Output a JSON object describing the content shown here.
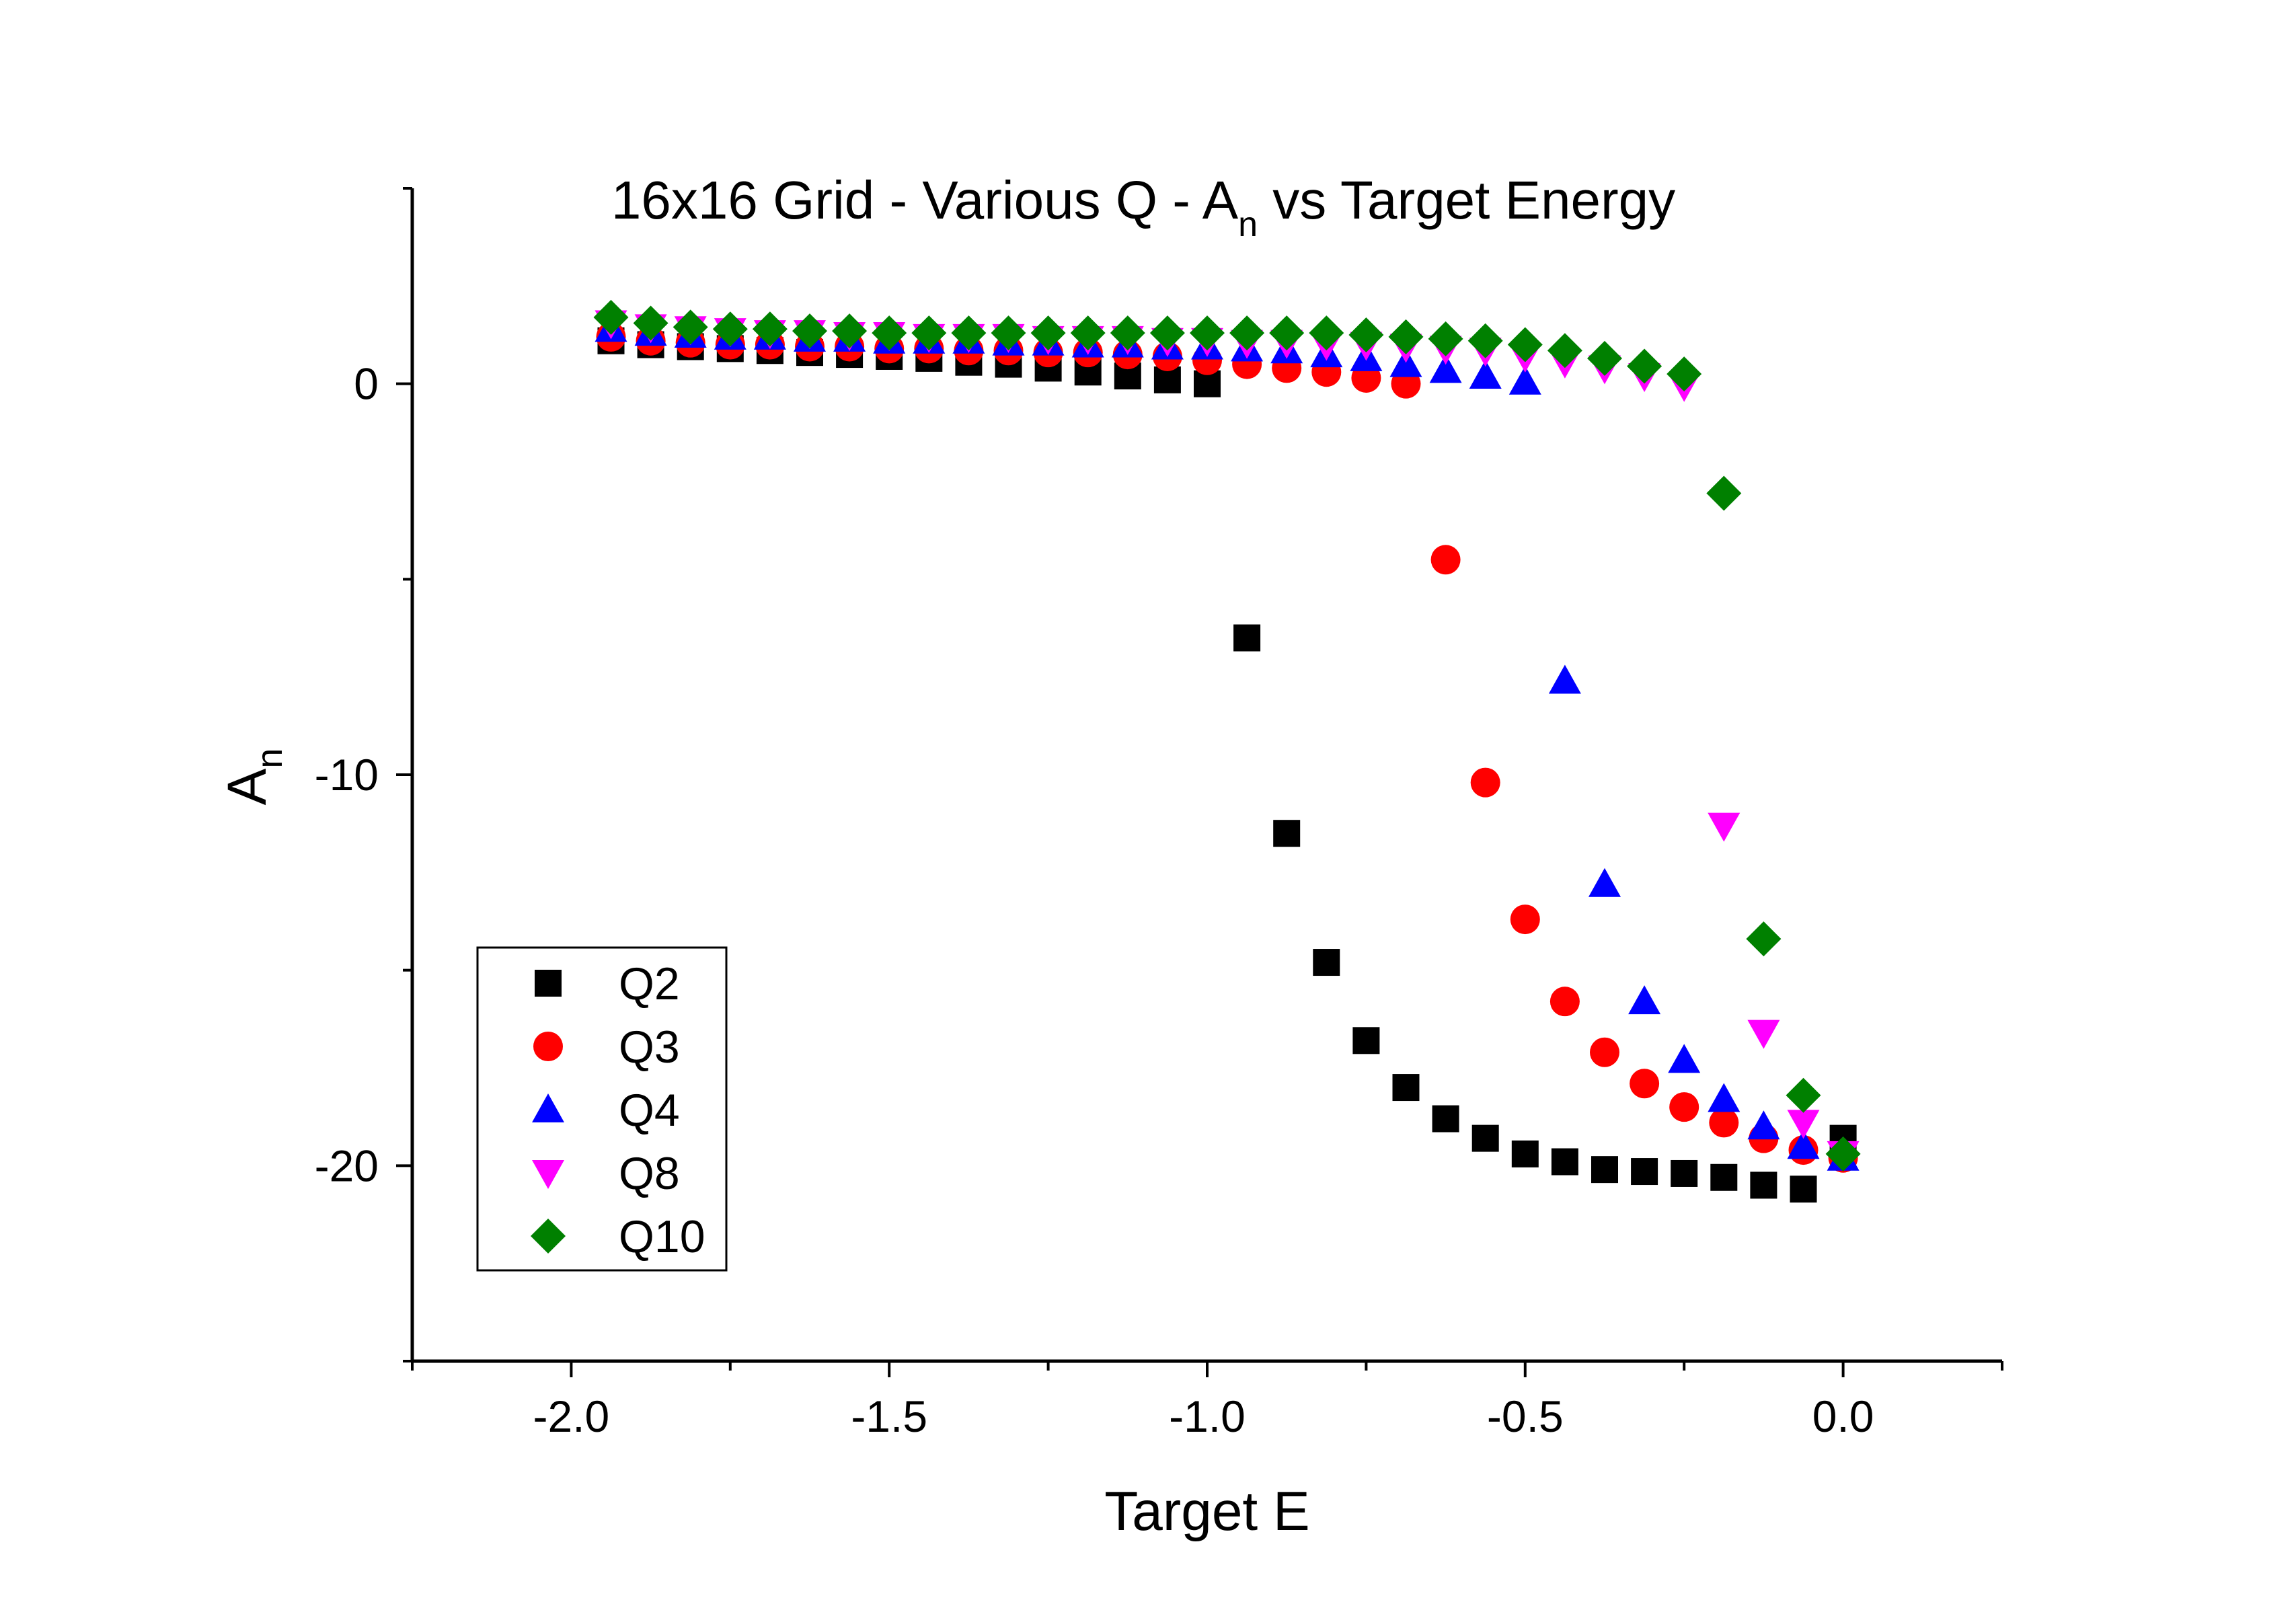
{
  "chart_data": {
    "type": "scatter",
    "title": "16x16 Grid - Various Q - A",
    "title_sub": "n",
    "title_suffix": " vs Target Energy",
    "xlabel": "Target E",
    "ylabel": "A",
    "ylabel_sub": "n",
    "xlim": [
      -2.25,
      0.25
    ],
    "ylim": [
      -25,
      5
    ],
    "x_ticks": [
      -2.0,
      -1.5,
      -1.0,
      -0.5,
      0.0
    ],
    "x_tick_labels": [
      "-2.0",
      "-1.5",
      "-1.0",
      "-0.5",
      "0.0"
    ],
    "y_ticks": [
      -20,
      -10,
      0
    ],
    "y_tick_labels": [
      "-20",
      "-10",
      "0"
    ],
    "grid": false,
    "legend_position": "bottom-left",
    "series": [
      {
        "name": "Q2",
        "marker": "square",
        "color": "#000000",
        "points": [
          [
            -1.9375,
            1.1
          ],
          [
            -1.875,
            1.0
          ],
          [
            -1.8125,
            0.95
          ],
          [
            -1.75,
            0.9
          ],
          [
            -1.6875,
            0.85
          ],
          [
            -1.625,
            0.8
          ],
          [
            -1.5625,
            0.75
          ],
          [
            -1.5,
            0.7
          ],
          [
            -1.4375,
            0.65
          ],
          [
            -1.375,
            0.55
          ],
          [
            -1.3125,
            0.5
          ],
          [
            -1.25,
            0.4
          ],
          [
            -1.1875,
            0.3
          ],
          [
            -1.125,
            0.2
          ],
          [
            -1.0625,
            0.1
          ],
          [
            -1.0,
            0.0
          ],
          [
            -0.9375,
            -6.5
          ],
          [
            -0.875,
            -11.5
          ],
          [
            -0.8125,
            -14.8
          ],
          [
            -0.75,
            -16.8
          ],
          [
            -0.6875,
            -18.0
          ],
          [
            -0.625,
            -18.8
          ],
          [
            -0.5625,
            -19.3
          ],
          [
            -0.5,
            -19.7
          ],
          [
            -0.4375,
            -19.9
          ],
          [
            -0.375,
            -20.1
          ],
          [
            -0.3125,
            -20.15
          ],
          [
            -0.25,
            -20.2
          ],
          [
            -0.1875,
            -20.3
          ],
          [
            -0.125,
            -20.5
          ],
          [
            -0.0625,
            -20.6
          ],
          [
            0.0,
            -19.3
          ]
        ]
      },
      {
        "name": "Q3",
        "marker": "circle",
        "color": "#ff0000",
        "points": [
          [
            -1.9375,
            1.2
          ],
          [
            -1.875,
            1.1
          ],
          [
            -1.8125,
            1.05
          ],
          [
            -1.75,
            1.0
          ],
          [
            -1.6875,
            1.0
          ],
          [
            -1.625,
            0.95
          ],
          [
            -1.5625,
            0.95
          ],
          [
            -1.5,
            0.9
          ],
          [
            -1.4375,
            0.9
          ],
          [
            -1.375,
            0.85
          ],
          [
            -1.3125,
            0.85
          ],
          [
            -1.25,
            0.8
          ],
          [
            -1.1875,
            0.8
          ],
          [
            -1.125,
            0.75
          ],
          [
            -1.0625,
            0.7
          ],
          [
            -1.0,
            0.6
          ],
          [
            -0.9375,
            0.5
          ],
          [
            -0.875,
            0.4
          ],
          [
            -0.8125,
            0.3
          ],
          [
            -0.75,
            0.15
          ],
          [
            -0.6875,
            0.0
          ],
          [
            -0.625,
            -4.5
          ],
          [
            -0.5625,
            -10.2
          ],
          [
            -0.5,
            -13.7
          ],
          [
            -0.4375,
            -15.8
          ],
          [
            -0.375,
            -17.1
          ],
          [
            -0.3125,
            -17.9
          ],
          [
            -0.25,
            -18.5
          ],
          [
            -0.1875,
            -18.9
          ],
          [
            -0.125,
            -19.3
          ],
          [
            -0.0625,
            -19.6
          ],
          [
            0.0,
            -19.8
          ]
        ]
      },
      {
        "name": "Q4",
        "marker": "triangle-up",
        "color": "#0000ff",
        "points": [
          [
            -1.9375,
            1.4
          ],
          [
            -1.875,
            1.3
          ],
          [
            -1.8125,
            1.25
          ],
          [
            -1.75,
            1.2
          ],
          [
            -1.6875,
            1.2
          ],
          [
            -1.625,
            1.15
          ],
          [
            -1.5625,
            1.15
          ],
          [
            -1.5,
            1.1
          ],
          [
            -1.4375,
            1.1
          ],
          [
            -1.375,
            1.1
          ],
          [
            -1.3125,
            1.05
          ],
          [
            -1.25,
            1.05
          ],
          [
            -1.1875,
            1.0
          ],
          [
            -1.125,
            1.0
          ],
          [
            -1.0625,
            0.95
          ],
          [
            -1.0,
            0.95
          ],
          [
            -0.9375,
            0.9
          ],
          [
            -0.875,
            0.85
          ],
          [
            -0.8125,
            0.75
          ],
          [
            -0.75,
            0.65
          ],
          [
            -0.6875,
            0.5
          ],
          [
            -0.625,
            0.35
          ],
          [
            -0.5625,
            0.2
          ],
          [
            -0.5,
            0.05
          ],
          [
            -0.4375,
            -7.6
          ],
          [
            -0.375,
            -12.8
          ],
          [
            -0.3125,
            -15.8
          ],
          [
            -0.25,
            -17.3
          ],
          [
            -0.1875,
            -18.3
          ],
          [
            -0.125,
            -19.0
          ],
          [
            -0.0625,
            -19.5
          ],
          [
            0.0,
            -19.8
          ]
        ]
      },
      {
        "name": "Q8",
        "marker": "triangle-down",
        "color": "#ff00ff",
        "points": [
          [
            -1.9375,
            1.55
          ],
          [
            -1.875,
            1.45
          ],
          [
            -1.8125,
            1.4
          ],
          [
            -1.75,
            1.35
          ],
          [
            -1.6875,
            1.3
          ],
          [
            -1.625,
            1.3
          ],
          [
            -1.5625,
            1.25
          ],
          [
            -1.5,
            1.25
          ],
          [
            -1.4375,
            1.2
          ],
          [
            -1.375,
            1.2
          ],
          [
            -1.3125,
            1.2
          ],
          [
            -1.25,
            1.15
          ],
          [
            -1.1875,
            1.15
          ],
          [
            -1.125,
            1.15
          ],
          [
            -1.0625,
            1.1
          ],
          [
            -1.0,
            1.1
          ],
          [
            -0.9375,
            1.05
          ],
          [
            -0.875,
            1.05
          ],
          [
            -0.8125,
            1.0
          ],
          [
            -0.75,
            1.0
          ],
          [
            -0.6875,
            0.95
          ],
          [
            -0.625,
            0.9
          ],
          [
            -0.5625,
            0.85
          ],
          [
            -0.5,
            0.7
          ],
          [
            -0.4375,
            0.55
          ],
          [
            -0.375,
            0.4
          ],
          [
            -0.3125,
            0.2
          ],
          [
            -0.25,
            -0.05
          ],
          [
            -0.1875,
            -11.3
          ],
          [
            -0.125,
            -16.6
          ],
          [
            -0.0625,
            -18.9
          ],
          [
            0.0,
            -19.7
          ]
        ]
      },
      {
        "name": "Q10",
        "marker": "diamond",
        "color": "#008000",
        "points": [
          [
            -1.9375,
            1.7
          ],
          [
            -1.875,
            1.55
          ],
          [
            -1.8125,
            1.45
          ],
          [
            -1.75,
            1.4
          ],
          [
            -1.6875,
            1.4
          ],
          [
            -1.625,
            1.35
          ],
          [
            -1.5625,
            1.35
          ],
          [
            -1.5,
            1.3
          ],
          [
            -1.4375,
            1.3
          ],
          [
            -1.375,
            1.3
          ],
          [
            -1.3125,
            1.3
          ],
          [
            -1.25,
            1.3
          ],
          [
            -1.1875,
            1.3
          ],
          [
            -1.125,
            1.3
          ],
          [
            -1.0625,
            1.3
          ],
          [
            -1.0,
            1.3
          ],
          [
            -0.9375,
            1.3
          ],
          [
            -0.875,
            1.3
          ],
          [
            -0.8125,
            1.3
          ],
          [
            -0.75,
            1.25
          ],
          [
            -0.6875,
            1.2
          ],
          [
            -0.625,
            1.15
          ],
          [
            -0.5625,
            1.1
          ],
          [
            -0.5,
            1.0
          ],
          [
            -0.4375,
            0.85
          ],
          [
            -0.375,
            0.65
          ],
          [
            -0.3125,
            0.45
          ],
          [
            -0.25,
            0.25
          ],
          [
            -0.1875,
            -2.8
          ],
          [
            -0.125,
            -14.2
          ],
          [
            -0.0625,
            -18.2
          ],
          [
            0.0,
            -19.7
          ]
        ]
      }
    ]
  }
}
